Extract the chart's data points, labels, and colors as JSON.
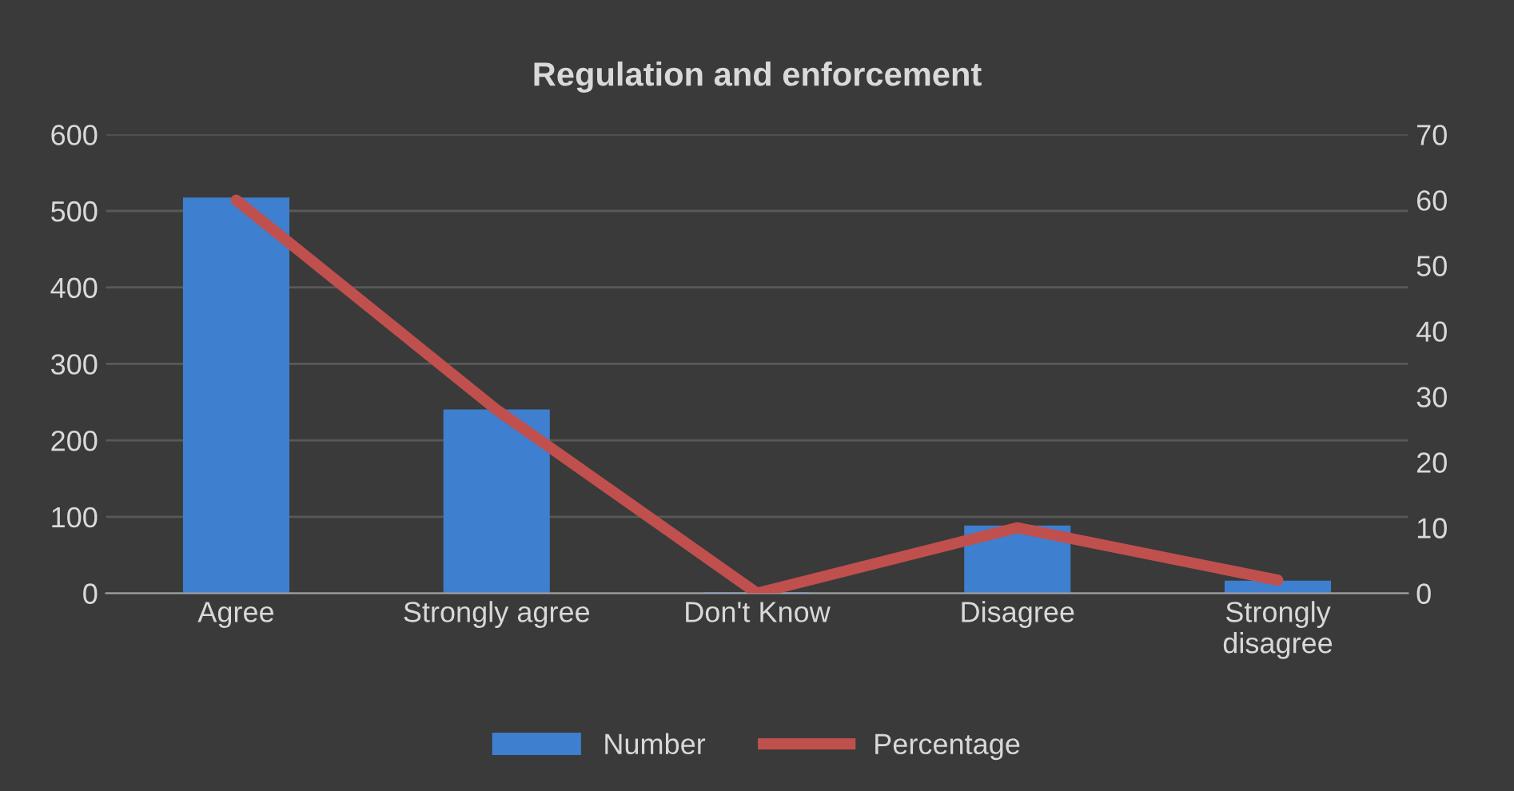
{
  "chart_data": {
    "type": "bar",
    "title": "Regulation and enforcement",
    "categories": [
      "Agree",
      "Strongly agree",
      "Don't Know",
      "Disagree",
      "Strongly\ndisagree"
    ],
    "series": [
      {
        "name": "Number",
        "color": "#3f7fcf",
        "values": [
          516,
          239,
          0,
          87,
          15
        ]
      },
      {
        "name": "Percentage",
        "type": "line",
        "axis": "y2",
        "color": "#c0504d",
        "values": [
          60,
          28,
          0,
          10,
          2
        ]
      }
    ],
    "ylim": [
      0,
      600
    ],
    "yticks": [
      0,
      100,
      200,
      300,
      400,
      500,
      600
    ],
    "y2lim": [
      0,
      70
    ],
    "y2ticks": [
      0,
      10,
      20,
      30,
      40,
      50,
      60,
      70
    ],
    "grid": "y",
    "legend": "bottom"
  }
}
